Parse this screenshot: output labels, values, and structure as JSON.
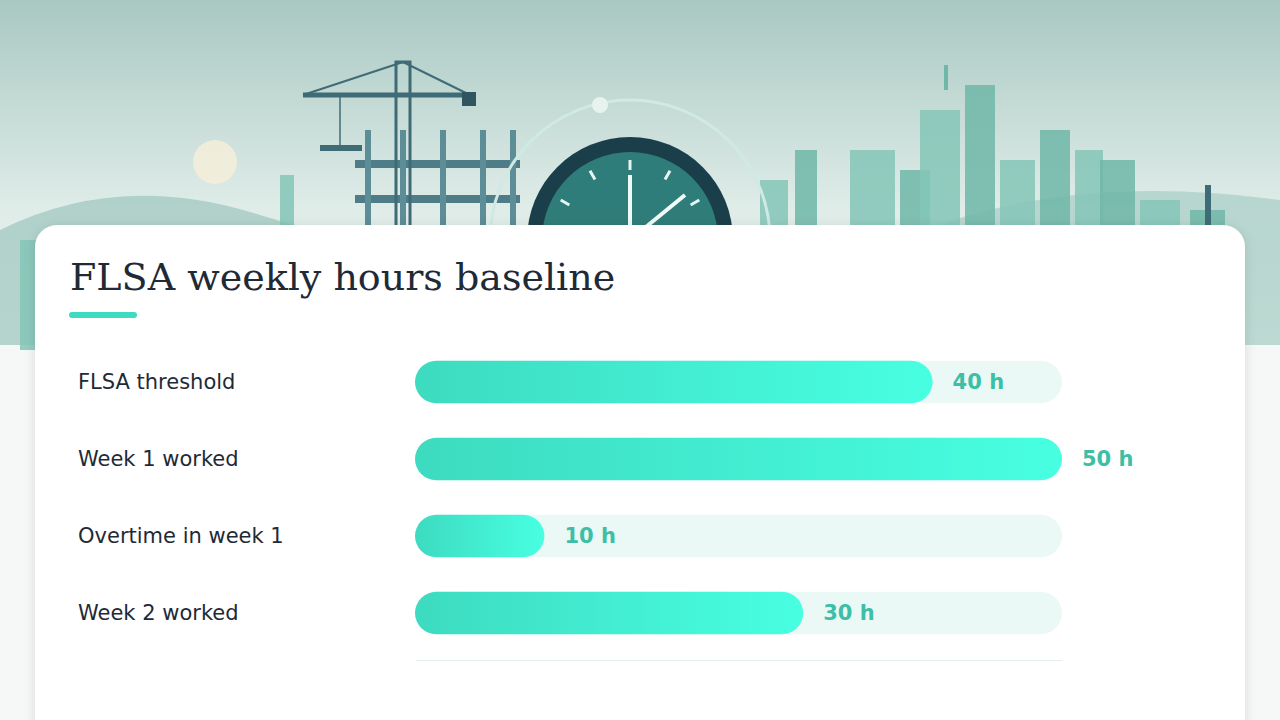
{
  "chart_data": {
    "type": "bar",
    "orientation": "horizontal",
    "title": "FLSA weekly hours baseline",
    "categories": [
      "FLSA threshold",
      "Week 1 worked",
      "Overtime in week 1",
      "Week 2 worked"
    ],
    "values": [
      40,
      50,
      10,
      30
    ],
    "value_labels": [
      "40 h",
      "50 h",
      "10 h",
      "30 h"
    ],
    "color": "#3ddbc0",
    "xlim": [
      0,
      50
    ],
    "tick_labels": false,
    "grid": false,
    "data_labels": true
  }
}
